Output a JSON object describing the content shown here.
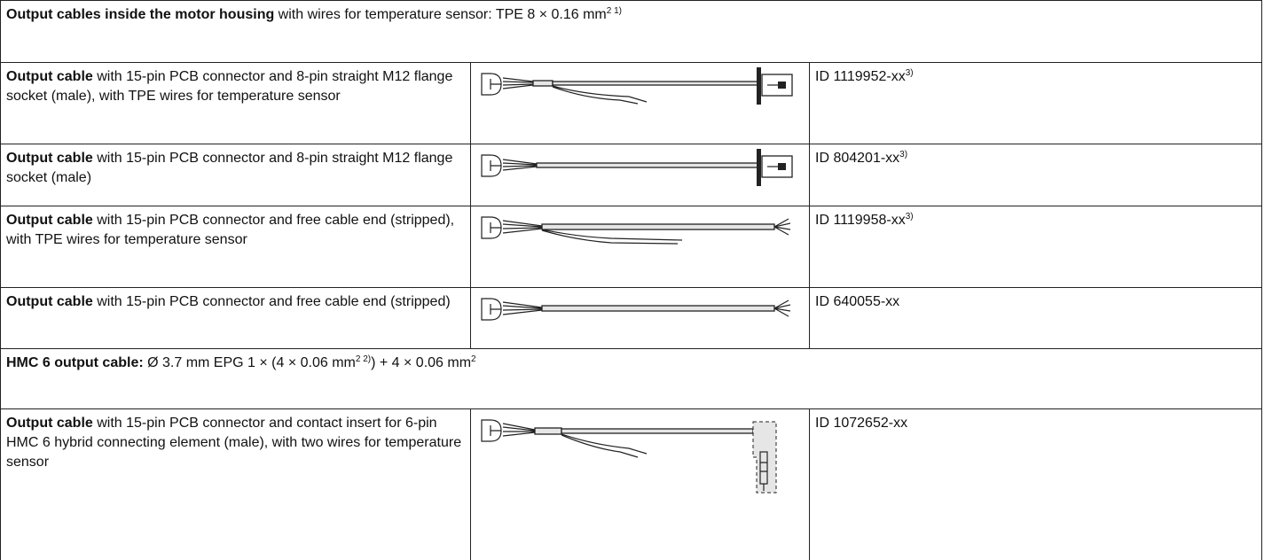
{
  "sections": [
    {
      "heading": {
        "bold": "Output cables inside the motor housing",
        "text": " with wires for temperature sensor: TPE 8 × 0.16 mm",
        "sup": "2 1)"
      },
      "rows": [
        {
          "bold": "Output cable",
          "text": " with 15-pin PCB connector and 8-pin straight M12 flange socket (male), with TPE wires for temperature sensor",
          "id": "ID 1119952-xx",
          "sup": "3)"
        },
        {
          "bold": "Output cable",
          "text": " with 15-pin PCB connector and 8-pin straight M12 flange socket (male)",
          "id": "ID 804201-xx",
          "sup": "3)"
        },
        {
          "bold": "Output cable",
          "text": " with 15-pin PCB connector and free cable end (stripped), with TPE wires for temperature sensor",
          "id": "ID 1119958-xx",
          "sup": "3)"
        },
        {
          "bold": "Output cable",
          "text": " with 15-pin PCB connector and free cable end (stripped)",
          "id": "ID 640055-xx"
        }
      ]
    },
    {
      "heading": {
        "bold": "HMC 6 output cable:",
        "text": " Ø 3.7 mm EPG 1 × (4 × 0.06 mm",
        "sup": "2 2)",
        "text2": ") + 4 × 0.06 mm",
        "sup2": "2"
      },
      "rows": [
        {
          "bold": "Output cable",
          "text": " with 15-pin PCB connector and contact insert for 6-pin HMC 6 hybrid connecting element (male), with two wires for temperature sensor",
          "id": "ID 1072652-xx"
        }
      ]
    }
  ]
}
